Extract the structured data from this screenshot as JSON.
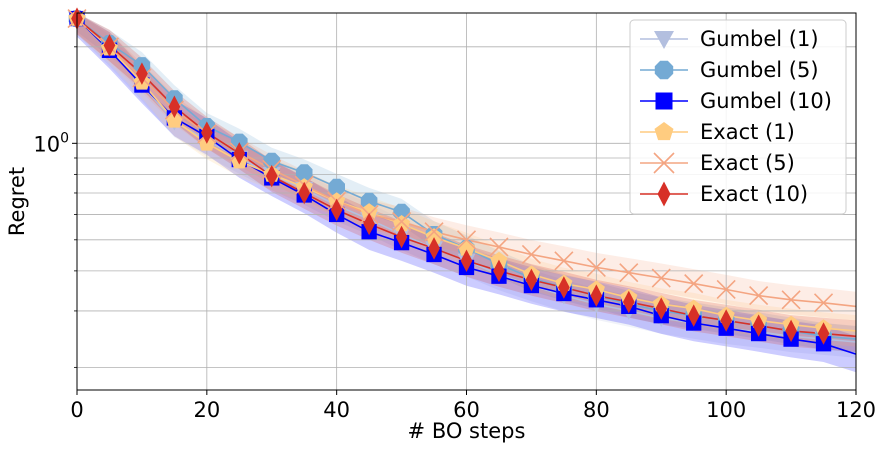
{
  "chart_data": {
    "type": "line",
    "title": "",
    "xlabel": "# BO steps",
    "ylabel": "Regret",
    "xlim": [
      0,
      120
    ],
    "ylim": [
      0.17,
      2.55
    ],
    "yscale": "log",
    "grid": true,
    "legend_position": "top-right",
    "x_ticks": [
      0,
      20,
      40,
      60,
      80,
      100,
      120
    ],
    "x_tick_labels": [
      "0",
      "20",
      "40",
      "60",
      "80",
      "100",
      "120"
    ],
    "y_major_ticks": [
      1.0
    ],
    "y_tick_label_base": "10",
    "y_tick_label_exp": "0",
    "y_minor_ticks": [
      0.2,
      0.3,
      0.4,
      0.5,
      0.6,
      0.7,
      0.8,
      0.9,
      2.0
    ],
    "x": [
      0,
      5,
      10,
      15,
      20,
      25,
      30,
      35,
      40,
      45,
      50,
      55,
      60,
      65,
      70,
      75,
      80,
      85,
      90,
      95,
      100,
      105,
      110,
      115,
      120
    ],
    "series": [
      {
        "name": "Gumbel (1)",
        "color": "#b3bfdf",
        "marker": "triangle-down",
        "values": [
          2.45,
          1.95,
          1.52,
          1.17,
          1.02,
          0.9,
          0.8,
          0.72,
          0.64,
          0.58,
          0.52,
          0.47,
          0.43,
          0.39,
          0.36,
          0.335,
          0.315,
          0.3,
          0.285,
          0.275,
          0.265,
          0.258,
          0.25,
          0.245,
          0.24
        ]
      },
      {
        "name": "Gumbel (5)",
        "color": "#74aad4",
        "marker": "octagon",
        "values": [
          2.45,
          2.05,
          1.75,
          1.38,
          1.13,
          1.01,
          0.88,
          0.81,
          0.73,
          0.66,
          0.61,
          0.52,
          0.47,
          0.42,
          0.38,
          0.355,
          0.335,
          0.315,
          0.3,
          0.29,
          0.28,
          0.27,
          0.26,
          0.25,
          0.245
        ]
      },
      {
        "name": "Gumbel (10)",
        "color": "#0000ff",
        "marker": "square",
        "values": [
          2.45,
          1.95,
          1.52,
          1.2,
          1.05,
          0.89,
          0.78,
          0.69,
          0.6,
          0.53,
          0.49,
          0.45,
          0.41,
          0.385,
          0.36,
          0.34,
          0.325,
          0.31,
          0.29,
          0.275,
          0.265,
          0.255,
          0.245,
          0.237,
          0.22
        ]
      },
      {
        "name": "Exact (1)",
        "color": "#ffcc80",
        "marker": "pentagon",
        "values": [
          2.45,
          1.98,
          1.55,
          1.18,
          1.0,
          0.88,
          0.8,
          0.73,
          0.66,
          0.61,
          0.56,
          0.51,
          0.47,
          0.43,
          0.39,
          0.365,
          0.35,
          0.33,
          0.315,
          0.305,
          0.29,
          0.28,
          0.272,
          0.265,
          0.26
        ]
      },
      {
        "name": "Exact (5)",
        "color": "#f4a582",
        "marker": "x",
        "values": [
          2.45,
          2.0,
          1.6,
          1.27,
          1.07,
          0.94,
          0.83,
          0.74,
          0.66,
          0.6,
          0.57,
          0.53,
          0.5,
          0.475,
          0.45,
          0.43,
          0.41,
          0.395,
          0.38,
          0.365,
          0.35,
          0.335,
          0.325,
          0.318,
          0.31
        ]
      },
      {
        "name": "Exact (10)",
        "color": "#d73027",
        "marker": "diamond",
        "values": [
          2.45,
          2.02,
          1.65,
          1.3,
          1.08,
          0.93,
          0.79,
          0.7,
          0.62,
          0.56,
          0.51,
          0.47,
          0.43,
          0.4,
          0.375,
          0.355,
          0.335,
          0.32,
          0.305,
          0.29,
          0.28,
          0.27,
          0.26,
          0.255,
          0.25
        ]
      }
    ]
  }
}
